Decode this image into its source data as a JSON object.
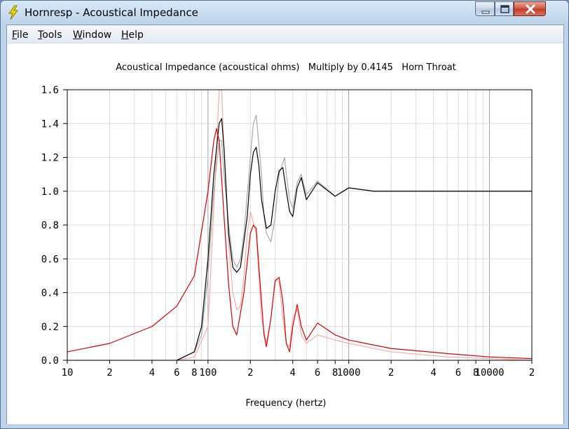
{
  "window": {
    "title": "Hornresp - Acoustical Impedance",
    "app_icon": "lightning-bolt-icon"
  },
  "menu": {
    "items": [
      {
        "label": "File",
        "mnemonic": "F",
        "rest": "ile"
      },
      {
        "label": "Tools",
        "mnemonic": "T",
        "rest": "ools"
      },
      {
        "label": "Window",
        "mnemonic": "W",
        "rest": "indow"
      },
      {
        "label": "Help",
        "mnemonic": "H",
        "rest": "elp"
      }
    ]
  },
  "chart_data": {
    "type": "line",
    "title": "Acoustical Impedance (acoustical ohms)   Multiply by 0.4145   Horn Throat",
    "xlabel": "Frequency (hertz)",
    "ylabel": "",
    "x_scale": "log",
    "xlim": [
      10,
      20000
    ],
    "ylim": [
      0,
      1.6
    ],
    "grid": true,
    "x_ticks": [
      {
        "value": 10,
        "label": "10"
      },
      {
        "value": 20,
        "label": "2"
      },
      {
        "value": 40,
        "label": "4"
      },
      {
        "value": 60,
        "label": "6"
      },
      {
        "value": 80,
        "label": "8"
      },
      {
        "value": 100,
        "label": "100"
      },
      {
        "value": 200,
        "label": "2"
      },
      {
        "value": 400,
        "label": "4"
      },
      {
        "value": 600,
        "label": "6"
      },
      {
        "value": 800,
        "label": "8"
      },
      {
        "value": 1000,
        "label": "1000"
      },
      {
        "value": 2000,
        "label": "2"
      },
      {
        "value": 4000,
        "label": "4"
      },
      {
        "value": 6000,
        "label": "6"
      },
      {
        "value": 8000,
        "label": "8"
      },
      {
        "value": 10000,
        "label": "10000"
      },
      {
        "value": 20000,
        "label": "2"
      }
    ],
    "y_ticks": [
      {
        "value": 0,
        "label": "0.0"
      },
      {
        "value": 0.2,
        "label": "0.2"
      },
      {
        "value": 0.4,
        "label": "0.4"
      },
      {
        "value": 0.6,
        "label": "0.6"
      },
      {
        "value": 0.8,
        "label": "0.8"
      },
      {
        "value": 1.0,
        "label": "1.0"
      },
      {
        "value": 1.2,
        "label": "1.2"
      },
      {
        "value": 1.4,
        "label": "1.4"
      },
      {
        "value": 1.6,
        "label": "1.6"
      }
    ],
    "series": [
      {
        "color": "#ffaaaa",
        "x": [
          10,
          20,
          40,
          60,
          80,
          100,
          110,
          120,
          125,
          130,
          140,
          150,
          160,
          170,
          180,
          190,
          200,
          220,
          240,
          260,
          280,
          300,
          320,
          340,
          360,
          380,
          400,
          430,
          460,
          500,
          600,
          800,
          1000,
          2000,
          5000,
          10000,
          20000
        ],
        "values": [
          0,
          0,
          0,
          0,
          0.02,
          0.2,
          0.9,
          1.6,
          1.6,
          1.25,
          0.7,
          0.4,
          0.3,
          0.32,
          0.5,
          0.75,
          0.88,
          0.75,
          0.25,
          0.1,
          0.25,
          0.48,
          0.46,
          0.25,
          0.1,
          0.08,
          0.25,
          0.3,
          0.15,
          0.1,
          0.15,
          0.12,
          0.1,
          0.05,
          0.02,
          0.01,
          0
        ]
      },
      {
        "color": "#aaaaaa",
        "x": [
          60,
          80,
          90,
          100,
          110,
          120,
          125,
          130,
          140,
          150,
          160,
          170,
          180,
          200,
          210,
          220,
          240,
          250,
          260,
          280,
          300,
          320,
          350,
          360,
          380,
          400,
          430,
          460,
          500,
          600,
          800,
          1000,
          1500,
          2000,
          20000
        ],
        "values": [
          0,
          0.05,
          0.15,
          0.5,
          1.0,
          1.3,
          1.3,
          1.1,
          0.8,
          0.6,
          0.55,
          0.6,
          0.75,
          1.2,
          1.4,
          1.45,
          1.1,
          0.85,
          0.75,
          0.7,
          0.85,
          1.1,
          1.2,
          1.1,
          0.95,
          0.9,
          1.05,
          1.1,
          0.98,
          1.06,
          0.97,
          1.02,
          1.0,
          1.0,
          1.0
        ]
      },
      {
        "color": "#000000",
        "x": [
          60,
          80,
          90,
          100,
          110,
          120,
          125,
          130,
          140,
          150,
          160,
          170,
          190,
          200,
          210,
          220,
          230,
          240,
          260,
          280,
          300,
          320,
          340,
          360,
          380,
          400,
          430,
          460,
          500,
          600,
          800,
          1000,
          1500,
          2000,
          20000
        ],
        "values": [
          0,
          0.05,
          0.2,
          0.6,
          1.1,
          1.4,
          1.43,
          1.25,
          0.75,
          0.55,
          0.52,
          0.55,
          0.85,
          1.1,
          1.23,
          1.26,
          1.15,
          0.95,
          0.78,
          0.8,
          1.0,
          1.12,
          1.14,
          1.0,
          0.88,
          0.85,
          1.02,
          1.08,
          0.95,
          1.05,
          0.97,
          1.02,
          1.0,
          1.0,
          1.0
        ]
      },
      {
        "color": "#dd0000",
        "x": [
          10,
          20,
          40,
          60,
          80,
          100,
          110,
          115,
          120,
          130,
          140,
          150,
          160,
          180,
          200,
          210,
          220,
          230,
          250,
          260,
          280,
          300,
          320,
          340,
          360,
          380,
          400,
          430,
          460,
          500,
          600,
          800,
          1000,
          2000,
          5000,
          10000,
          20000
        ],
        "values": [
          0.05,
          0.1,
          0.2,
          0.32,
          0.5,
          1.0,
          1.3,
          1.37,
          1.3,
          0.85,
          0.45,
          0.2,
          0.15,
          0.4,
          0.75,
          0.8,
          0.78,
          0.55,
          0.15,
          0.08,
          0.25,
          0.47,
          0.49,
          0.35,
          0.1,
          0.05,
          0.2,
          0.33,
          0.2,
          0.12,
          0.22,
          0.15,
          0.12,
          0.07,
          0.04,
          0.02,
          0.01
        ]
      }
    ]
  }
}
